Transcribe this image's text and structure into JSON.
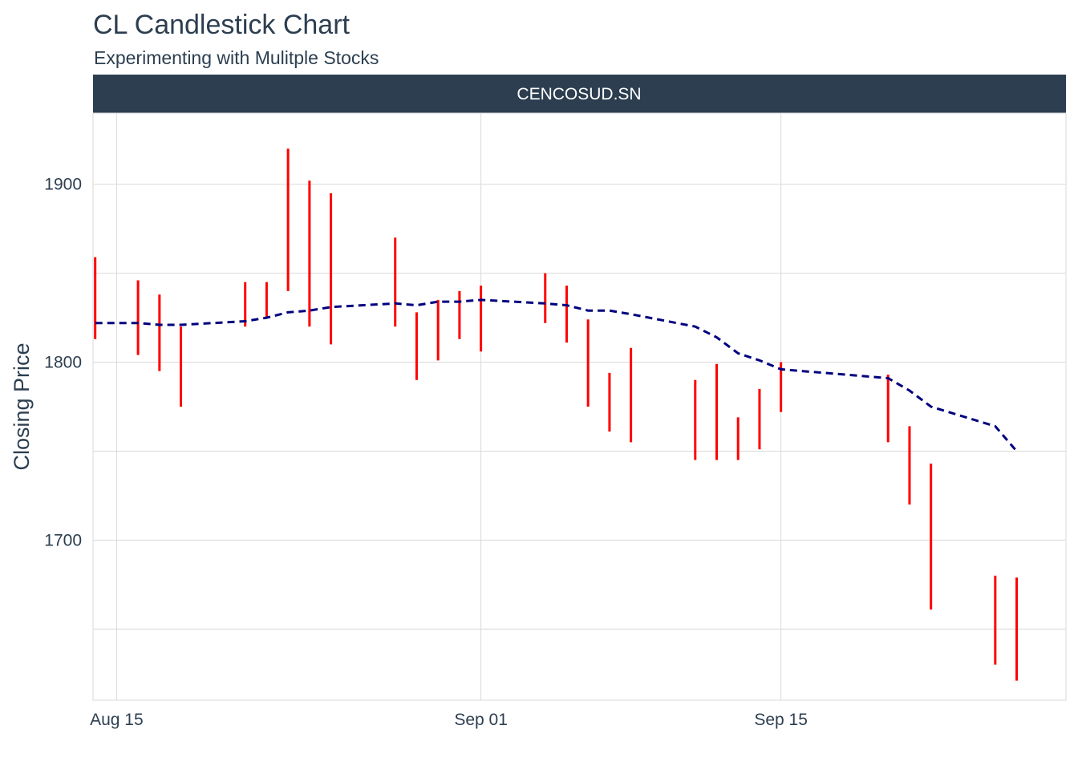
{
  "chart_data": {
    "type": "candlestick",
    "title": "CL Candlestick Chart",
    "subtitle": "Experimenting with Mulitple Stocks",
    "facet_label": "CENCOSUD.SN",
    "ylabel": "Closing Price",
    "xlabel": "",
    "x_ticks": [
      {
        "date": "2019-08-15",
        "label": "Aug 15"
      },
      {
        "date": "2019-09-01",
        "label": "Sep 01"
      },
      {
        "date": "2019-09-15",
        "label": "Sep 15"
      }
    ],
    "y_ticks": [
      1700,
      1800,
      1900
    ],
    "xlim": [
      "2019-08-13.9",
      "2019-09-28.3"
    ],
    "ylim": [
      1610,
      1940
    ],
    "grid": true,
    "colors": {
      "candle": "#ff0000",
      "moving_average": "#00007f",
      "facet_strip": "#2c3e50",
      "grid": "#d9d9d9"
    },
    "candles": [
      {
        "date": "2019-08-14",
        "low": 1813,
        "high": 1859
      },
      {
        "date": "2019-08-16",
        "low": 1804,
        "high": 1846
      },
      {
        "date": "2019-08-17",
        "low": 1795,
        "high": 1838
      },
      {
        "date": "2019-08-18",
        "low": 1775,
        "high": 1820
      },
      {
        "date": "2019-08-21",
        "low": 1820,
        "high": 1845
      },
      {
        "date": "2019-08-22",
        "low": 1825,
        "high": 1845
      },
      {
        "date": "2019-08-23",
        "low": 1840,
        "high": 1920
      },
      {
        "date": "2019-08-24",
        "low": 1820,
        "high": 1902
      },
      {
        "date": "2019-08-25",
        "low": 1810,
        "high": 1895
      },
      {
        "date": "2019-08-28",
        "low": 1820,
        "high": 1870
      },
      {
        "date": "2019-08-29",
        "low": 1790,
        "high": 1828
      },
      {
        "date": "2019-08-30",
        "low": 1801,
        "high": 1835
      },
      {
        "date": "2019-08-31",
        "low": 1813,
        "high": 1840
      },
      {
        "date": "2019-09-01",
        "low": 1806,
        "high": 1843
      },
      {
        "date": "2019-09-04",
        "low": 1822,
        "high": 1850
      },
      {
        "date": "2019-09-05",
        "low": 1811,
        "high": 1843
      },
      {
        "date": "2019-09-06",
        "low": 1775,
        "high": 1824
      },
      {
        "date": "2019-09-07",
        "low": 1761,
        "high": 1794
      },
      {
        "date": "2019-09-08",
        "low": 1755,
        "high": 1808
      },
      {
        "date": "2019-09-11",
        "low": 1745,
        "high": 1790
      },
      {
        "date": "2019-09-12",
        "low": 1745,
        "high": 1799
      },
      {
        "date": "2019-09-13",
        "low": 1745,
        "high": 1769
      },
      {
        "date": "2019-09-14",
        "low": 1751,
        "high": 1785
      },
      {
        "date": "2019-09-15",
        "low": 1772,
        "high": 1800
      },
      {
        "date": "2019-09-20",
        "low": 1755,
        "high": 1793
      },
      {
        "date": "2019-09-21",
        "low": 1720,
        "high": 1764
      },
      {
        "date": "2019-09-22",
        "low": 1661,
        "high": 1743
      },
      {
        "date": "2019-09-25",
        "low": 1630,
        "high": 1680
      },
      {
        "date": "2019-09-26",
        "low": 1621,
        "high": 1679
      }
    ],
    "moving_average": [
      {
        "date": "2019-08-14",
        "value": 1822
      },
      {
        "date": "2019-08-15",
        "value": 1822
      },
      {
        "date": "2019-08-16",
        "value": 1822
      },
      {
        "date": "2019-08-17",
        "value": 1821
      },
      {
        "date": "2019-08-18",
        "value": 1821
      },
      {
        "date": "2019-08-21",
        "value": 1823
      },
      {
        "date": "2019-08-22",
        "value": 1825
      },
      {
        "date": "2019-08-23",
        "value": 1828
      },
      {
        "date": "2019-08-24",
        "value": 1829
      },
      {
        "date": "2019-08-25",
        "value": 1831
      },
      {
        "date": "2019-08-28",
        "value": 1833
      },
      {
        "date": "2019-08-29",
        "value": 1832
      },
      {
        "date": "2019-08-30",
        "value": 1834
      },
      {
        "date": "2019-08-31",
        "value": 1834
      },
      {
        "date": "2019-09-01",
        "value": 1835
      },
      {
        "date": "2019-09-04",
        "value": 1833
      },
      {
        "date": "2019-09-05",
        "value": 1832
      },
      {
        "date": "2019-09-06",
        "value": 1829
      },
      {
        "date": "2019-09-07",
        "value": 1829
      },
      {
        "date": "2019-09-08",
        "value": 1827
      },
      {
        "date": "2019-09-11",
        "value": 1820
      },
      {
        "date": "2019-09-12",
        "value": 1814
      },
      {
        "date": "2019-09-13",
        "value": 1805
      },
      {
        "date": "2019-09-14",
        "value": 1801
      },
      {
        "date": "2019-09-15",
        "value": 1796
      },
      {
        "date": "2019-09-20",
        "value": 1791
      },
      {
        "date": "2019-09-21",
        "value": 1784
      },
      {
        "date": "2019-09-22",
        "value": 1775
      },
      {
        "date": "2019-09-25",
        "value": 1764
      },
      {
        "date": "2019-09-26",
        "value": 1750
      }
    ]
  }
}
